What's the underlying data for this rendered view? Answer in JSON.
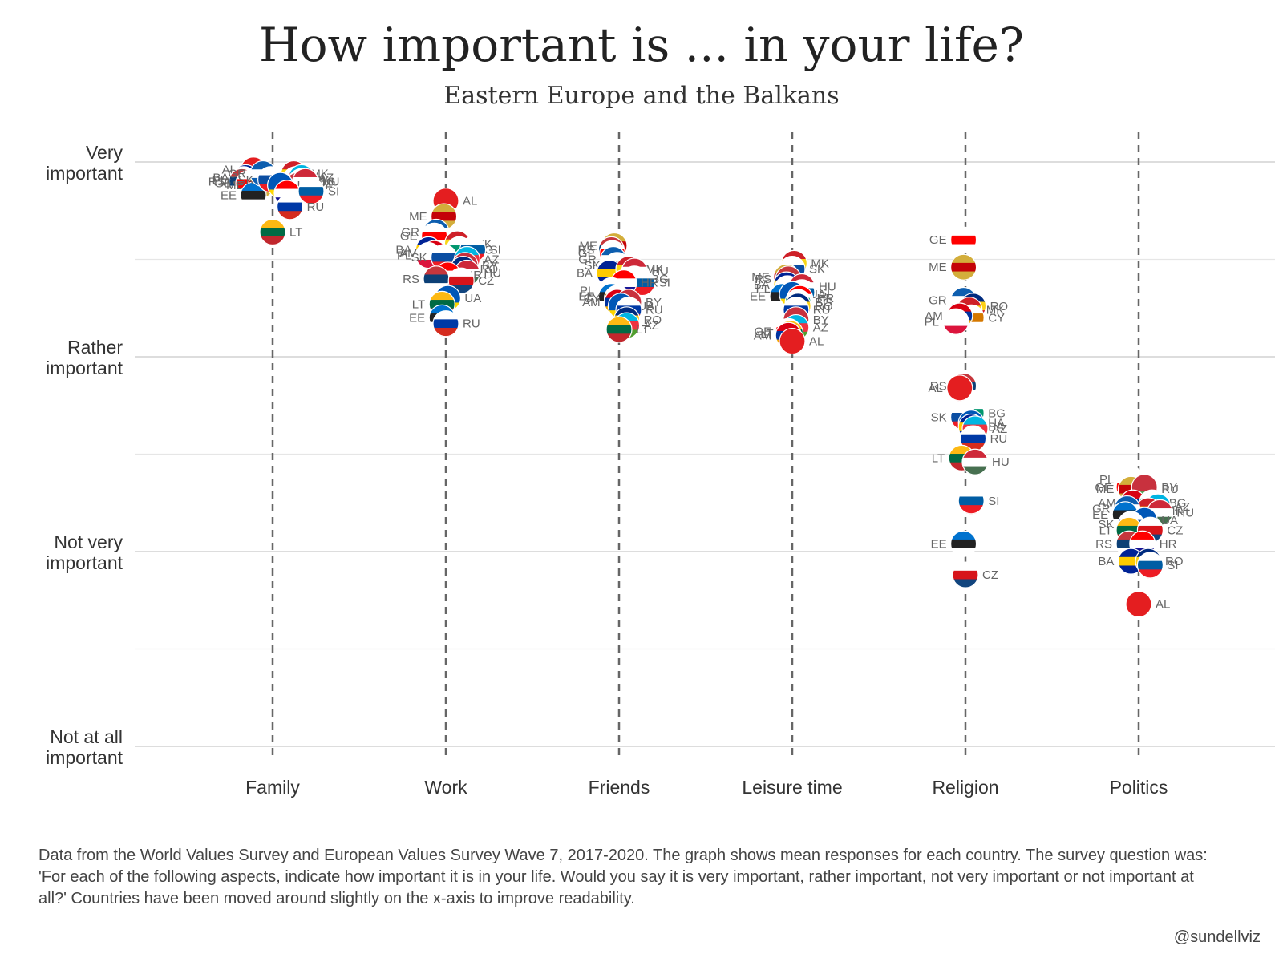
{
  "title": "How important is ... in your life?",
  "subtitle": "Eastern Europe and the Balkans",
  "caption": "Data from the World Values Survey and European Values Survey Wave 7, 2017-2020. The graph shows mean responses for each country. The survey question was: 'For each of the following aspects, indicate how important it is in your life. Would you say it is very important, rather important, not very important or not important at all?' Countries have been moved around slightly on the x-axis to improve readability.",
  "credit": "@sundellviz",
  "chart_data": {
    "type": "scatter",
    "categories": [
      "Family",
      "Work",
      "Friends",
      "Leisure time",
      "Religion",
      "Politics"
    ],
    "y_ticks": [
      {
        "value": 1,
        "label": [
          "Very",
          "important"
        ]
      },
      {
        "value": 2,
        "label": [
          "Rather",
          "important"
        ]
      },
      {
        "value": 3,
        "label": [
          "Not very",
          "important"
        ]
      },
      {
        "value": 4,
        "label": [
          "Not at all",
          "important"
        ]
      }
    ],
    "ylim": [
      1,
      4
    ],
    "y_inverted": true,
    "grid": true,
    "flag_colors": {
      "AL": [
        "#e41e20",
        "#e41e20",
        "#e41e20"
      ],
      "AM": [
        "#d90012",
        "#0033a0",
        "#f2a800"
      ],
      "AZ": [
        "#00b5e2",
        "#ef3340",
        "#509e2f"
      ],
      "BA": [
        "#002395",
        "#fecb00",
        "#002395"
      ],
      "BG": [
        "#ffffff",
        "#00966e",
        "#d62612"
      ],
      "BY": [
        "#c8313e",
        "#c8313e",
        "#4aa657"
      ],
      "CY": [
        "#ffffff",
        "#d57800",
        "#ffffff"
      ],
      "CZ": [
        "#ffffff",
        "#d7141a",
        "#11457e"
      ],
      "EE": [
        "#0072ce",
        "#222222",
        "#ffffff"
      ],
      "GE": [
        "#ffffff",
        "#ff0000",
        "#ffffff"
      ],
      "GR": [
        "#0d5eaf",
        "#ffffff",
        "#0d5eaf"
      ],
      "HR": [
        "#ff0000",
        "#ffffff",
        "#171796"
      ],
      "HU": [
        "#ce2939",
        "#ffffff",
        "#477050"
      ],
      "LT": [
        "#fdb913",
        "#006a44",
        "#c1272d"
      ],
      "ME": [
        "#d3ae3b",
        "#c40308",
        "#d3ae3b"
      ],
      "MK": [
        "#ce2028",
        "#f9d616",
        "#ce2028"
      ],
      "PL": [
        "#ffffff",
        "#ffffff",
        "#dc143c"
      ],
      "RO": [
        "#002b7f",
        "#fcd116",
        "#ce1126"
      ],
      "RS": [
        "#c6363c",
        "#0c4076",
        "#ffffff"
      ],
      "RU": [
        "#ffffff",
        "#0039a6",
        "#d52b1e"
      ],
      "SI": [
        "#ffffff",
        "#005da4",
        "#ed1c24"
      ],
      "SK": [
        "#ffffff",
        "#0b4ea2",
        "#ee1c25"
      ],
      "UA": [
        "#0057b7",
        "#0057b7",
        "#ffd700"
      ]
    },
    "series": [
      {
        "category": "Family",
        "points": [
          {
            "country": "AL",
            "x": -0.2,
            "y": 1.04
          },
          {
            "country": "AM",
            "x": -0.15,
            "y": 1.1
          },
          {
            "country": "BA",
            "x": -0.28,
            "y": 1.08
          },
          {
            "country": "PL",
            "x": -0.3,
            "y": 1.09
          },
          {
            "country": "RS",
            "x": -0.32,
            "y": 1.1
          },
          {
            "country": "GE",
            "x": -0.25,
            "y": 1.11
          },
          {
            "country": "ME",
            "x": -0.12,
            "y": 1.12
          },
          {
            "country": "EE",
            "x": -0.2,
            "y": 1.17
          },
          {
            "country": "GR",
            "x": -0.1,
            "y": 1.06
          },
          {
            "country": "SK",
            "x": -0.02,
            "y": 1.09
          },
          {
            "country": "MK",
            "x": 0.22,
            "y": 1.06
          },
          {
            "country": "CY",
            "x": 0.24,
            "y": 1.09
          },
          {
            "country": "AZ",
            "x": 0.3,
            "y": 1.08
          },
          {
            "country": "BG",
            "x": 0.3,
            "y": 1.1
          },
          {
            "country": "CZ",
            "x": 0.28,
            "y": 1.11
          },
          {
            "country": "BY",
            "x": 0.26,
            "y": 1.12
          },
          {
            "country": "HU",
            "x": 0.34,
            "y": 1.1
          },
          {
            "country": "UA",
            "x": 0.08,
            "y": 1.12
          },
          {
            "country": "HR",
            "x": 0.15,
            "y": 1.16
          },
          {
            "country": "SI",
            "x": 0.4,
            "y": 1.15
          },
          {
            "country": "RU",
            "x": 0.18,
            "y": 1.23
          },
          {
            "country": "LT",
            "x": 0.0,
            "y": 1.36
          }
        ]
      },
      {
        "category": "Work",
        "points": [
          {
            "country": "AL",
            "x": 0.0,
            "y": 1.2
          },
          {
            "country": "ME",
            "x": -0.02,
            "y": 1.28
          },
          {
            "country": "GR",
            "x": -0.1,
            "y": 1.36
          },
          {
            "country": "GE",
            "x": -0.12,
            "y": 1.38
          },
          {
            "country": "BA",
            "x": -0.18,
            "y": 1.45
          },
          {
            "country": "AM",
            "x": -0.12,
            "y": 1.47
          },
          {
            "country": "PL",
            "x": -0.18,
            "y": 1.48
          },
          {
            "country": "MK",
            "x": 0.12,
            "y": 1.42
          },
          {
            "country": "BG",
            "x": 0.14,
            "y": 1.45
          },
          {
            "country": "SI",
            "x": 0.28,
            "y": 1.45
          },
          {
            "country": "SK",
            "x": -0.02,
            "y": 1.49
          },
          {
            "country": "AZ",
            "x": 0.22,
            "y": 1.5
          },
          {
            "country": "BY",
            "x": 0.2,
            "y": 1.53
          },
          {
            "country": "RO",
            "x": 0.18,
            "y": 1.55
          },
          {
            "country": "HU",
            "x": 0.22,
            "y": 1.57
          },
          {
            "country": "HR",
            "x": 0.02,
            "y": 1.58
          },
          {
            "country": "RS",
            "x": -0.1,
            "y": 1.6
          },
          {
            "country": "CZ",
            "x": 0.16,
            "y": 1.61
          },
          {
            "country": "UA",
            "x": 0.02,
            "y": 1.7
          },
          {
            "country": "LT",
            "x": -0.04,
            "y": 1.73
          },
          {
            "country": "EE",
            "x": -0.04,
            "y": 1.8
          },
          {
            "country": "RU",
            "x": 0.0,
            "y": 1.83
          }
        ]
      },
      {
        "category": "Friends",
        "points": [
          {
            "country": "ME",
            "x": -0.05,
            "y": 1.43
          },
          {
            "country": "RS",
            "x": -0.08,
            "y": 1.45
          },
          {
            "country": "GE",
            "x": -0.07,
            "y": 1.47
          },
          {
            "country": "GR",
            "x": -0.06,
            "y": 1.5
          },
          {
            "country": "SK",
            "x": -0.02,
            "y": 1.53
          },
          {
            "country": "BA",
            "x": -0.1,
            "y": 1.57
          },
          {
            "country": "MK",
            "x": 0.1,
            "y": 1.55
          },
          {
            "country": "HU",
            "x": 0.16,
            "y": 1.56
          },
          {
            "country": "BG",
            "x": 0.16,
            "y": 1.6
          },
          {
            "country": "SI",
            "x": 0.24,
            "y": 1.62
          },
          {
            "country": "HR",
            "x": 0.05,
            "y": 1.62
          },
          {
            "country": "PL",
            "x": -0.08,
            "y": 1.66
          },
          {
            "country": "EE",
            "x": -0.08,
            "y": 1.69
          },
          {
            "country": "CY",
            "x": -0.02,
            "y": 1.7
          },
          {
            "country": "AM",
            "x": -0.02,
            "y": 1.72
          },
          {
            "country": "BY",
            "x": 0.1,
            "y": 1.72
          },
          {
            "country": "UA",
            "x": 0.02,
            "y": 1.74
          },
          {
            "country": "RU",
            "x": 0.1,
            "y": 1.76
          },
          {
            "country": "RO",
            "x": 0.08,
            "y": 1.81
          },
          {
            "country": "AZ",
            "x": 0.08,
            "y": 1.84
          },
          {
            "country": "LT",
            "x": 0.0,
            "y": 1.86
          }
        ]
      },
      {
        "category": "Leisure time",
        "points": [
          {
            "country": "MK",
            "x": 0.02,
            "y": 1.52
          },
          {
            "country": "SK",
            "x": 0.0,
            "y": 1.55
          },
          {
            "country": "ME",
            "x": -0.06,
            "y": 1.59
          },
          {
            "country": "RS",
            "x": -0.04,
            "y": 1.6
          },
          {
            "country": "BA",
            "x": -0.06,
            "y": 1.63
          },
          {
            "country": "PL",
            "x": -0.05,
            "y": 1.65
          },
          {
            "country": "HU",
            "x": 0.1,
            "y": 1.64
          },
          {
            "country": "SI",
            "x": 0.1,
            "y": 1.67
          },
          {
            "country": "EE",
            "x": -0.1,
            "y": 1.69
          },
          {
            "country": "UA",
            "x": 0.0,
            "y": 1.68
          },
          {
            "country": "HR",
            "x": 0.08,
            "y": 1.7
          },
          {
            "country": "BG",
            "x": 0.06,
            "y": 1.72
          },
          {
            "country": "RO",
            "x": 0.06,
            "y": 1.74
          },
          {
            "country": "RU",
            "x": 0.04,
            "y": 1.76
          },
          {
            "country": "BY",
            "x": 0.04,
            "y": 1.81
          },
          {
            "country": "AZ",
            "x": 0.04,
            "y": 1.85
          },
          {
            "country": "GE",
            "x": -0.04,
            "y": 1.87
          },
          {
            "country": "LT",
            "x": -0.02,
            "y": 1.88
          },
          {
            "country": "AM",
            "x": -0.04,
            "y": 1.89
          },
          {
            "country": "AL",
            "x": 0.0,
            "y": 1.92
          }
        ]
      },
      {
        "category": "Religion",
        "points": [
          {
            "country": "GE",
            "x": -0.02,
            "y": 1.4
          },
          {
            "country": "ME",
            "x": -0.02,
            "y": 1.54
          },
          {
            "country": "GR",
            "x": -0.02,
            "y": 1.71
          },
          {
            "country": "RO",
            "x": 0.08,
            "y": 1.74
          },
          {
            "country": "MK",
            "x": 0.04,
            "y": 1.76
          },
          {
            "country": "CY",
            "x": 0.06,
            "y": 1.8
          },
          {
            "country": "AM",
            "x": -0.06,
            "y": 1.79
          },
          {
            "country": "PL",
            "x": -0.1,
            "y": 1.82
          },
          {
            "country": "RS",
            "x": -0.02,
            "y": 2.15
          },
          {
            "country": "AL",
            "x": -0.06,
            "y": 2.16
          },
          {
            "country": "BG",
            "x": 0.06,
            "y": 2.29
          },
          {
            "country": "SK",
            "x": -0.02,
            "y": 2.31
          },
          {
            "country": "UA",
            "x": 0.06,
            "y": 2.34
          },
          {
            "country": "BA",
            "x": 0.06,
            "y": 2.36
          },
          {
            "country": "AZ",
            "x": 0.1,
            "y": 2.37
          },
          {
            "country": "RU",
            "x": 0.08,
            "y": 2.42
          },
          {
            "country": "LT",
            "x": -0.04,
            "y": 2.52
          },
          {
            "country": "HU",
            "x": 0.1,
            "y": 2.54
          },
          {
            "country": "SI",
            "x": 0.06,
            "y": 2.74
          },
          {
            "country": "EE",
            "x": -0.02,
            "y": 2.96
          },
          {
            "country": "CZ",
            "x": 0.0,
            "y": 3.12
          }
        ]
      },
      {
        "category": "Politics",
        "points": [
          {
            "country": "PL",
            "x": -0.08,
            "y": 2.63
          },
          {
            "country": "GE",
            "x": -0.1,
            "y": 2.67
          },
          {
            "country": "ME",
            "x": -0.08,
            "y": 2.68
          },
          {
            "country": "RU",
            "x": 0.06,
            "y": 2.68
          },
          {
            "country": "BY",
            "x": 0.06,
            "y": 2.67
          },
          {
            "country": "AM",
            "x": -0.06,
            "y": 2.75
          },
          {
            "country": "BG",
            "x": 0.14,
            "y": 2.75
          },
          {
            "country": "AZ",
            "x": 0.2,
            "y": 2.77
          },
          {
            "country": "MK",
            "x": 0.1,
            "y": 2.79
          },
          {
            "country": "HU",
            "x": 0.22,
            "y": 2.8
          },
          {
            "country": "GR",
            "x": -0.12,
            "y": 2.78
          },
          {
            "country": "EE",
            "x": -0.14,
            "y": 2.81
          },
          {
            "country": "UA",
            "x": 0.06,
            "y": 2.84
          },
          {
            "country": "SK",
            "x": -0.08,
            "y": 2.86
          },
          {
            "country": "LT",
            "x": -0.1,
            "y": 2.89
          },
          {
            "country": "CZ",
            "x": 0.12,
            "y": 2.89
          },
          {
            "country": "RS",
            "x": -0.1,
            "y": 2.96
          },
          {
            "country": "HR",
            "x": 0.04,
            "y": 2.96
          },
          {
            "country": "BA",
            "x": -0.08,
            "y": 3.05
          },
          {
            "country": "RO",
            "x": 0.1,
            "y": 3.05
          },
          {
            "country": "SI",
            "x": 0.12,
            "y": 3.07
          },
          {
            "country": "AL",
            "x": 0.0,
            "y": 3.27
          }
        ]
      }
    ]
  }
}
